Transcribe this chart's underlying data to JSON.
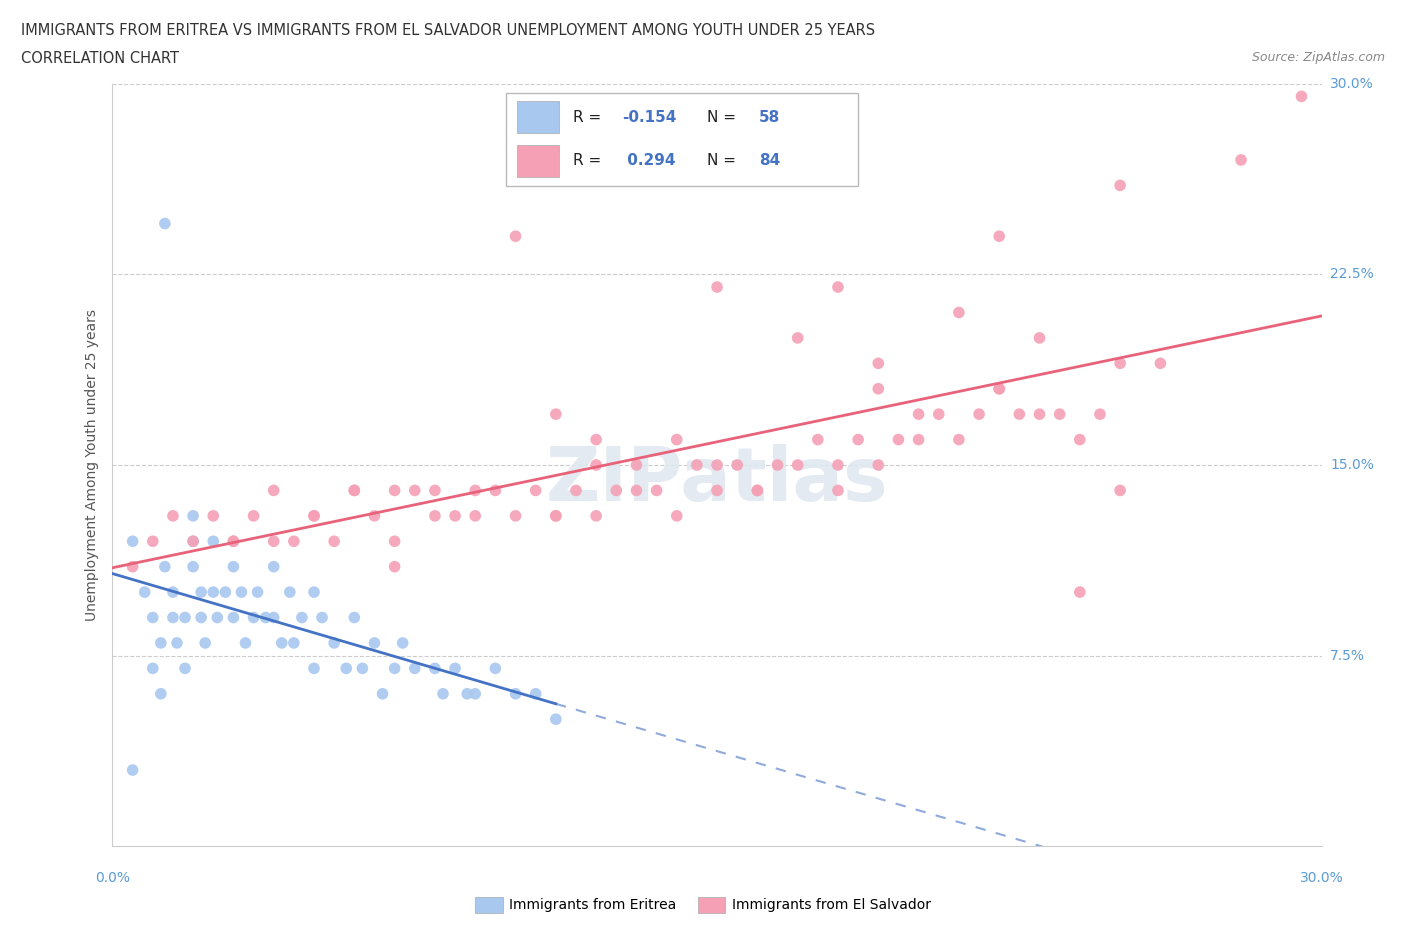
{
  "title_line1": "IMMIGRANTS FROM ERITREA VS IMMIGRANTS FROM EL SALVADOR UNEMPLOYMENT AMONG YOUTH UNDER 25 YEARS",
  "title_line2": "CORRELATION CHART",
  "source_text": "Source: ZipAtlas.com",
  "ylabel": "Unemployment Among Youth under 25 years",
  "xmin": 0.0,
  "xmax": 0.3,
  "ymin": 0.0,
  "ymax": 0.3,
  "yticks": [
    0.0,
    0.075,
    0.15,
    0.225,
    0.3
  ],
  "ytick_labels": [
    "",
    "7.5%",
    "15.0%",
    "22.5%",
    "30.0%"
  ],
  "hlines": [
    0.075,
    0.15,
    0.225,
    0.3
  ],
  "legend_labels": [
    "Immigrants from Eritrea",
    "Immigrants from El Salvador"
  ],
  "eritrea_color": "#a8c8f0",
  "el_salvador_color": "#f5a0b5",
  "eritrea_line_color": "#4472c4",
  "el_salvador_line_color": "#e8637a",
  "eritrea_R": -0.154,
  "eritrea_N": 58,
  "el_salvador_R": 0.294,
  "el_salvador_N": 84,
  "eritrea_scatter_x": [
    0.005,
    0.008,
    0.01,
    0.01,
    0.012,
    0.012,
    0.013,
    0.015,
    0.015,
    0.016,
    0.018,
    0.018,
    0.02,
    0.02,
    0.02,
    0.022,
    0.022,
    0.023,
    0.025,
    0.025,
    0.026,
    0.028,
    0.03,
    0.03,
    0.032,
    0.033,
    0.035,
    0.036,
    0.038,
    0.04,
    0.04,
    0.042,
    0.044,
    0.045,
    0.047,
    0.05,
    0.05,
    0.052,
    0.055,
    0.058,
    0.06,
    0.062,
    0.065,
    0.067,
    0.07,
    0.072,
    0.075,
    0.08,
    0.082,
    0.085,
    0.088,
    0.09,
    0.095,
    0.1,
    0.105,
    0.11,
    0.013,
    0.005
  ],
  "eritrea_scatter_y": [
    0.12,
    0.1,
    0.09,
    0.07,
    0.08,
    0.06,
    0.11,
    0.1,
    0.09,
    0.08,
    0.07,
    0.09,
    0.13,
    0.12,
    0.11,
    0.09,
    0.1,
    0.08,
    0.12,
    0.1,
    0.09,
    0.1,
    0.11,
    0.09,
    0.1,
    0.08,
    0.09,
    0.1,
    0.09,
    0.11,
    0.09,
    0.08,
    0.1,
    0.08,
    0.09,
    0.1,
    0.07,
    0.09,
    0.08,
    0.07,
    0.09,
    0.07,
    0.08,
    0.06,
    0.07,
    0.08,
    0.07,
    0.07,
    0.06,
    0.07,
    0.06,
    0.06,
    0.07,
    0.06,
    0.06,
    0.05,
    0.245,
    0.03
  ],
  "el_salvador_scatter_x": [
    0.005,
    0.01,
    0.015,
    0.02,
    0.025,
    0.03,
    0.035,
    0.04,
    0.045,
    0.05,
    0.055,
    0.06,
    0.065,
    0.07,
    0.075,
    0.08,
    0.085,
    0.09,
    0.095,
    0.1,
    0.105,
    0.11,
    0.115,
    0.12,
    0.125,
    0.13,
    0.135,
    0.14,
    0.145,
    0.15,
    0.155,
    0.16,
    0.165,
    0.17,
    0.175,
    0.18,
    0.185,
    0.19,
    0.195,
    0.2,
    0.205,
    0.21,
    0.215,
    0.22,
    0.225,
    0.23,
    0.235,
    0.24,
    0.245,
    0.25,
    0.03,
    0.06,
    0.09,
    0.12,
    0.15,
    0.18,
    0.22,
    0.25,
    0.1,
    0.14,
    0.19,
    0.24,
    0.28,
    0.17,
    0.21,
    0.11,
    0.05,
    0.08,
    0.13,
    0.16,
    0.2,
    0.23,
    0.07,
    0.12,
    0.15,
    0.18,
    0.22,
    0.25,
    0.04,
    0.07,
    0.11,
    0.19,
    0.26,
    0.295
  ],
  "el_salvador_scatter_y": [
    0.11,
    0.12,
    0.13,
    0.12,
    0.13,
    0.12,
    0.13,
    0.14,
    0.12,
    0.13,
    0.12,
    0.14,
    0.13,
    0.12,
    0.14,
    0.13,
    0.13,
    0.14,
    0.14,
    0.13,
    0.14,
    0.13,
    0.14,
    0.15,
    0.14,
    0.15,
    0.14,
    0.13,
    0.15,
    0.14,
    0.15,
    0.14,
    0.15,
    0.15,
    0.16,
    0.15,
    0.16,
    0.15,
    0.16,
    0.16,
    0.17,
    0.16,
    0.17,
    0.18,
    0.17,
    0.2,
    0.17,
    0.16,
    0.17,
    0.14,
    0.12,
    0.14,
    0.13,
    0.16,
    0.22,
    0.22,
    0.24,
    0.26,
    0.24,
    0.16,
    0.18,
    0.1,
    0.27,
    0.2,
    0.21,
    0.17,
    0.13,
    0.14,
    0.14,
    0.14,
    0.17,
    0.17,
    0.14,
    0.13,
    0.15,
    0.14,
    0.18,
    0.19,
    0.12,
    0.11,
    0.13,
    0.19,
    0.19,
    0.295
  ]
}
